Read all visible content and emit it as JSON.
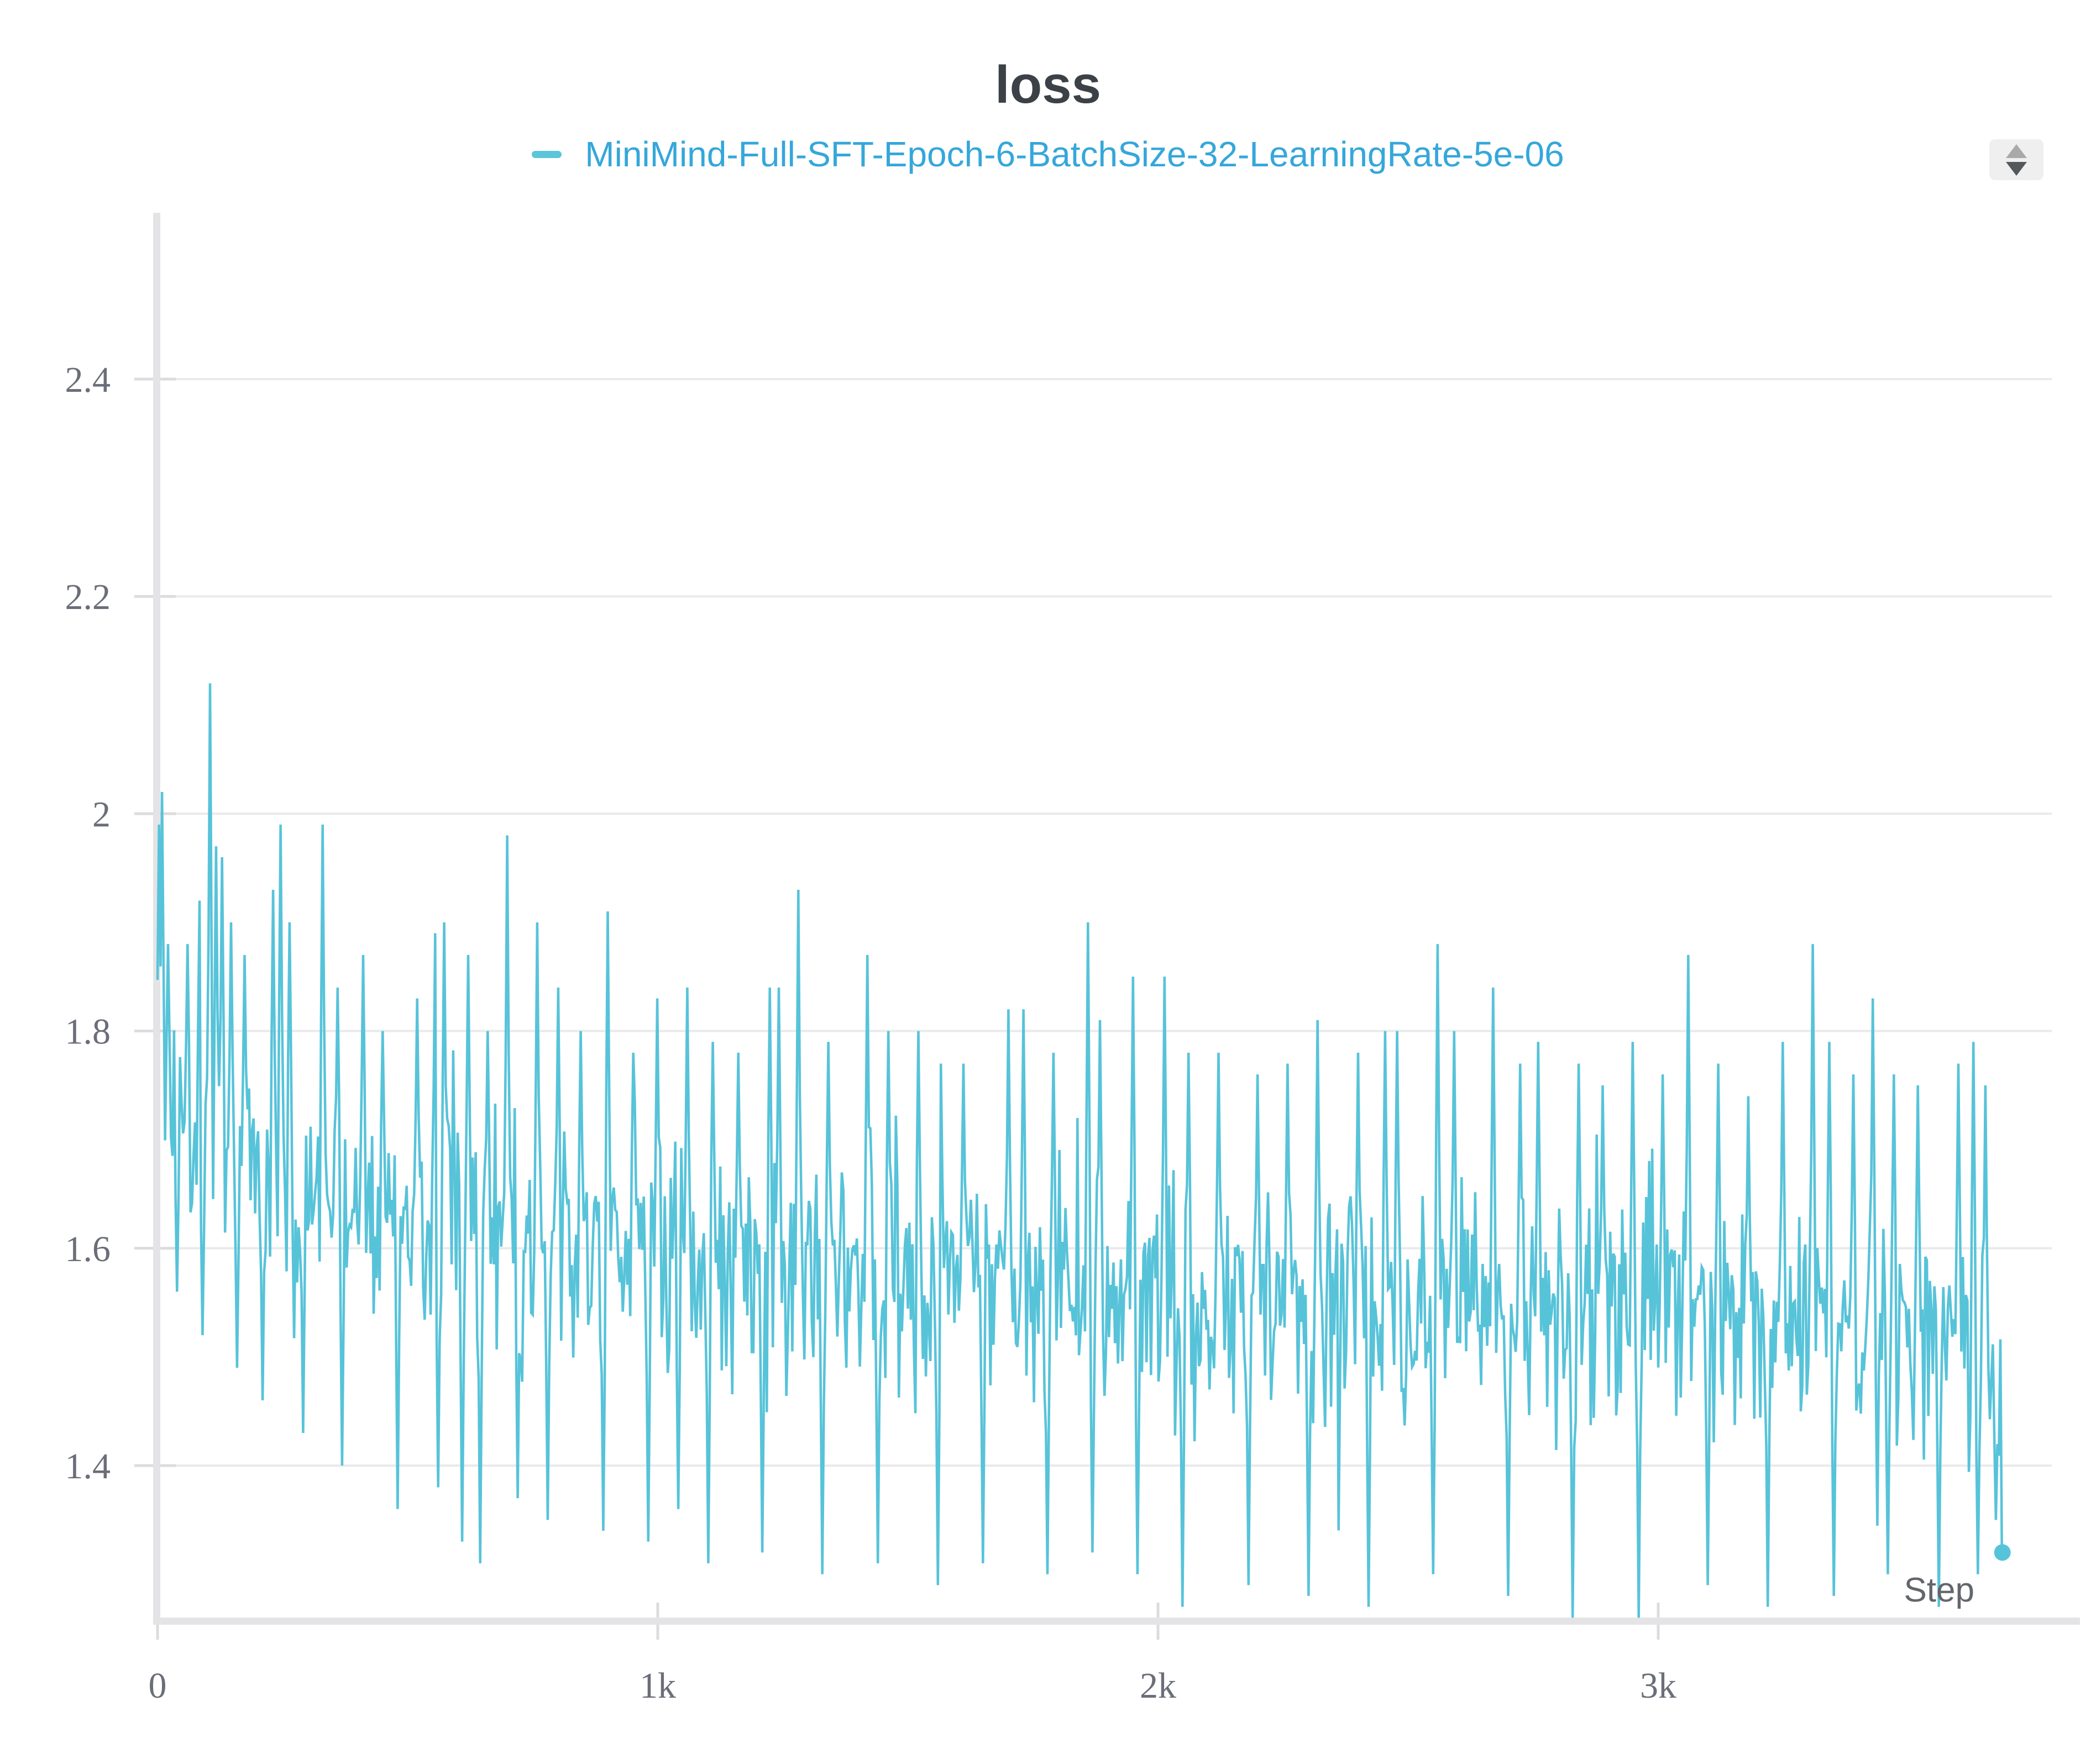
{
  "header": {
    "title": "loss",
    "title_color": "#3b4147"
  },
  "legend": {
    "items": [
      {
        "label": "MiniMind-Full-SFT-Epoch-6-BatchSize-32-LearningRate-5e-06",
        "swatch_color": "#5bc5da",
        "label_color": "#35a7da"
      }
    ]
  },
  "controls": {
    "panel_stepper": {
      "bg": "#efefef",
      "up_color": "#a9a9a9",
      "down_color": "#54575b"
    }
  },
  "axes": {
    "x": {
      "label": "Step",
      "label_color": "#63666c",
      "ticks": [
        {
          "value": 0,
          "label": "0"
        },
        {
          "value": 1000,
          "label": "1k"
        },
        {
          "value": 2000,
          "label": "2k"
        },
        {
          "value": 3000,
          "label": "3k"
        }
      ],
      "range": [
        0,
        3780
      ]
    },
    "y": {
      "ticks": [
        {
          "value": 2.4,
          "label": "2.4"
        },
        {
          "value": 2.2,
          "label": "2.2"
        },
        {
          "value": 2.0,
          "label": "2"
        },
        {
          "value": 1.8,
          "label": "1.8"
        },
        {
          "value": 1.6,
          "label": "1.6"
        },
        {
          "value": 1.4,
          "label": "1.4"
        }
      ],
      "range": [
        1.26,
        2.55
      ]
    },
    "tick_label_color": "#6b6e78",
    "gridline_color": "#eaeaec",
    "tick_mark_color": "#dcdcde",
    "axis_band_color": "#e4e4e6"
  },
  "chart_data": {
    "type": "line",
    "title": "loss",
    "xlabel": "Step",
    "ylabel": "",
    "x_range": [
      0,
      3780
    ],
    "y_gridlines": [
      2.4,
      2.2,
      2.0,
      1.8,
      1.6,
      1.4
    ],
    "grid": "horizontal-only",
    "legend_position": "top-center",
    "series": [
      {
        "name": "MiniMind-Full-SFT-Epoch-6-BatchSize-32-LearningRate-5e-06",
        "color": "#57c3d9",
        "x_start": 0,
        "x_end": 3688,
        "x_step": 3,
        "trend": [
          [
            0,
            1.73
          ],
          [
            60,
            1.71
          ],
          [
            150,
            1.68
          ],
          [
            300,
            1.665
          ],
          [
            500,
            1.635
          ],
          [
            800,
            1.605
          ],
          [
            1200,
            1.59
          ],
          [
            1600,
            1.575
          ],
          [
            2000,
            1.56
          ],
          [
            2400,
            1.55
          ],
          [
            2800,
            1.545
          ],
          [
            3200,
            1.54
          ],
          [
            3600,
            1.53
          ],
          [
            3688,
            1.47
          ]
        ],
        "noise": {
          "seed": 20240613,
          "band_up": 0.13,
          "band_down": 0.16,
          "tail_up": 0.12,
          "tail_down": 0.1,
          "tail_p": 0.04
        },
        "spikes": [
          [
            3,
            1.99
          ],
          [
            10,
            2.02
          ],
          [
            22,
            1.88
          ],
          [
            35,
            1.9
          ],
          [
            60,
            1.88
          ],
          [
            85,
            1.92
          ],
          [
            105,
            2.12
          ],
          [
            116,
            1.97
          ],
          [
            130,
            1.96
          ],
          [
            146,
            1.9
          ],
          [
            175,
            1.87
          ],
          [
            230,
            1.93
          ],
          [
            246,
            1.99
          ],
          [
            265,
            1.9
          ],
          [
            330,
            1.99
          ],
          [
            360,
            1.84
          ],
          [
            410,
            1.87
          ],
          [
            450,
            1.8
          ],
          [
            480,
            1.78
          ],
          [
            520,
            1.83
          ],
          [
            555,
            1.89
          ],
          [
            572,
            1.9
          ],
          [
            620,
            1.87
          ],
          [
            660,
            1.8
          ],
          [
            700,
            1.98
          ],
          [
            716,
            1.87
          ],
          [
            760,
            1.9
          ],
          [
            800,
            1.84
          ],
          [
            845,
            1.8
          ],
          [
            900,
            1.91
          ],
          [
            950,
            1.78
          ],
          [
            1000,
            1.83
          ],
          [
            1060,
            1.84
          ],
          [
            1110,
            1.79
          ],
          [
            1160,
            1.78
          ],
          [
            1225,
            1.84
          ],
          [
            1242,
            1.84
          ],
          [
            1280,
            1.93
          ],
          [
            1340,
            1.79
          ],
          [
            1420,
            1.87
          ],
          [
            1460,
            1.8
          ],
          [
            1520,
            1.8
          ],
          [
            1565,
            1.77
          ],
          [
            1610,
            1.77
          ],
          [
            1700,
            1.82
          ],
          [
            1732,
            1.82
          ],
          [
            1790,
            1.78
          ],
          [
            1860,
            1.9
          ],
          [
            1885,
            1.81
          ],
          [
            1950,
            1.85
          ],
          [
            2012,
            1.85
          ],
          [
            2060,
            1.78
          ],
          [
            2120,
            1.78
          ],
          [
            2200,
            1.76
          ],
          [
            2260,
            1.77
          ],
          [
            2320,
            1.81
          ],
          [
            2400,
            1.78
          ],
          [
            2455,
            1.8
          ],
          [
            2478,
            1.8
          ],
          [
            2560,
            1.88
          ],
          [
            2592,
            1.8
          ],
          [
            2670,
            1.84
          ],
          [
            2725,
            1.77
          ],
          [
            2760,
            1.79
          ],
          [
            2840,
            1.77
          ],
          [
            2890,
            1.75
          ],
          [
            2950,
            1.79
          ],
          [
            3010,
            1.76
          ],
          [
            3060,
            1.87
          ],
          [
            3120,
            1.77
          ],
          [
            3180,
            1.74
          ],
          [
            3250,
            1.79
          ],
          [
            3310,
            1.88
          ],
          [
            3342,
            1.79
          ],
          [
            3390,
            1.76
          ],
          [
            3430,
            1.83
          ],
          [
            3470,
            1.76
          ],
          [
            3520,
            1.75
          ],
          [
            3560,
            1.74
          ],
          [
            3600,
            1.77
          ],
          [
            3630,
            1.79
          ],
          [
            3655,
            1.75
          ]
        ],
        "dips": [
          [
            40,
            1.56
          ],
          [
            90,
            1.52
          ],
          [
            160,
            1.49
          ],
          [
            210,
            1.46
          ],
          [
            290,
            1.43
          ],
          [
            370,
            1.4
          ],
          [
            480,
            1.36
          ],
          [
            560,
            1.38
          ],
          [
            610,
            1.33
          ],
          [
            645,
            1.31
          ],
          [
            720,
            1.37
          ],
          [
            780,
            1.35
          ],
          [
            890,
            1.34
          ],
          [
            980,
            1.33
          ],
          [
            1040,
            1.36
          ],
          [
            1100,
            1.31
          ],
          [
            1210,
            1.32
          ],
          [
            1330,
            1.3
          ],
          [
            1440,
            1.31
          ],
          [
            1560,
            1.29
          ],
          [
            1650,
            1.31
          ],
          [
            1780,
            1.3
          ],
          [
            1870,
            1.32
          ],
          [
            1960,
            1.3
          ],
          [
            2050,
            1.27
          ],
          [
            2180,
            1.29
          ],
          [
            2300,
            1.28
          ],
          [
            2420,
            1.27
          ],
          [
            2550,
            1.3
          ],
          [
            2700,
            1.28
          ],
          [
            2830,
            1.26
          ],
          [
            2960,
            1.26
          ],
          [
            3100,
            1.29
          ],
          [
            3220,
            1.27
          ],
          [
            3350,
            1.28
          ],
          [
            3460,
            1.3
          ],
          [
            3560,
            1.27
          ],
          [
            3640,
            1.3
          ],
          [
            3676,
            1.35
          ]
        ],
        "last_point": [
          3688,
          1.32
        ]
      }
    ]
  }
}
